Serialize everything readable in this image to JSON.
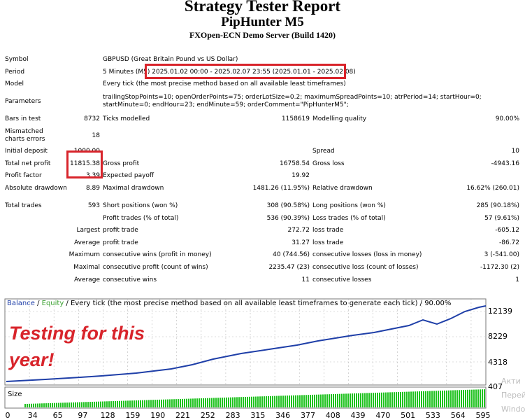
{
  "header": {
    "title": "Strategy Tester Report",
    "subtitle": "PipHunter M5",
    "server": "FXOpen-ECN Demo Server (Build 1420)"
  },
  "settings": {
    "symbol_label": "Symbol",
    "symbol_value": "GBPUSD (Great Britain Pound vs US Dollar)",
    "period_label": "Period",
    "period_value": "5 Minutes (M5) 2025.01.02 00:00 - 2025.02.07 23:55 (2025.01.01 - 2025.02.08)",
    "model_label": "Model",
    "model_value": "Every tick (the most precise method based on all available least timeframes)",
    "parameters_label": "Parameters",
    "parameters_value": "trailingStopPoints=10; openOrderPoints=75; orderLotSize=0.2; maximumSpreadPoints=10; atrPeriod=14; startHour=0; startMinute=0; endHour=23; endMinute=59; orderComment=\"PipHunterM5\";"
  },
  "stats": {
    "bars_label": "Bars in test",
    "bars_value": "8732",
    "ticks_label": "Ticks modelled",
    "ticks_value": "1158619",
    "mq_label": "Modelling quality",
    "mq_value": "90.00%",
    "mismatch_label": "Mismatched charts errors",
    "mismatch_value": "18",
    "deposit_label": "Initial deposit",
    "deposit_value": "1000.00",
    "spread_label": "Spread",
    "spread_value": "10",
    "netprofit_label": "Total net profit",
    "netprofit_value": "11815.38",
    "grossprofit_label": "Gross profit",
    "grossprofit_value": "16758.54",
    "grossloss_label": "Gross loss",
    "grossloss_value": "-4943.16",
    "pf_label": "Profit factor",
    "pf_value": "3.39",
    "ep_label": "Expected payoff",
    "ep_value": "19.92",
    "absdd_label": "Absolute drawdown",
    "absdd_value": "8.89",
    "maxdd_label": "Maximal drawdown",
    "maxdd_value": "1481.26 (11.95%)",
    "reldd_label": "Relative drawdown",
    "reldd_value": "16.62% (260.01)",
    "trades_label": "Total trades",
    "trades_value": "593",
    "short_label": "Short positions (won %)",
    "short_value": "308 (90.58%)",
    "long_label": "Long positions (won %)",
    "long_value": "285 (90.18%)",
    "ptrades_label": "Profit trades (% of total)",
    "ptrades_value": "536 (90.39%)",
    "ltrades_label": "Loss trades (% of total)",
    "ltrades_value": "57 (9.61%)",
    "largest_label": "Largest",
    "avg_label": "Average",
    "max_label": "Maximum",
    "maximal_label": "Maximal",
    "profit_trade_label": "profit trade",
    "largest_profit_value": "272.72",
    "avg_profit_value": "31.27",
    "loss_trade_label": "loss trade",
    "largest_loss_value": "-605.12",
    "avg_loss_value": "-86.72",
    "cw_money_label": "consecutive wins (profit in money)",
    "cw_money_value": "40 (744.56)",
    "cl_money_label": "consecutive losses (loss in money)",
    "cl_money_value": "3 (-541.00)",
    "cp_count_label": "consecutive profit (count of wins)",
    "cp_count_value": "2235.47 (23)",
    "cl_count_label": "consecutive loss (count of losses)",
    "cl_count_value": "-1172.30 (2)",
    "cw_avg_label": "consecutive wins",
    "cw_avg_value": "11",
    "cl_avg_label": "consecutive losses",
    "cl_avg_value": "1"
  },
  "chart": {
    "legend_balance": "Balance",
    "legend_sep": " / ",
    "legend_equity": "Equity",
    "legend_rest": " / Every tick (the most precise method based on all available least timeframes to generate each tick) / 90.00%",
    "overlay_line1": "Testing for this",
    "overlay_line2": "year!",
    "size_label": "Size",
    "y_ticks": [
      "12139",
      "8229",
      "4318",
      "407"
    ],
    "x_ticks": [
      "0",
      "34",
      "65",
      "97",
      "128",
      "159",
      "190",
      "221",
      "252",
      "283",
      "315",
      "346",
      "377",
      "408",
      "439",
      "470",
      "501",
      "533",
      "564",
      "595"
    ],
    "watermark_line1": "Акти",
    "watermark_line2": "Перей",
    "watermark_line3": "Windo"
  },
  "colors": {
    "highlight": "#d8242b",
    "balance": "#1f3fa8",
    "equity": "#3aa030",
    "size_bars": "#1fc21f"
  }
}
